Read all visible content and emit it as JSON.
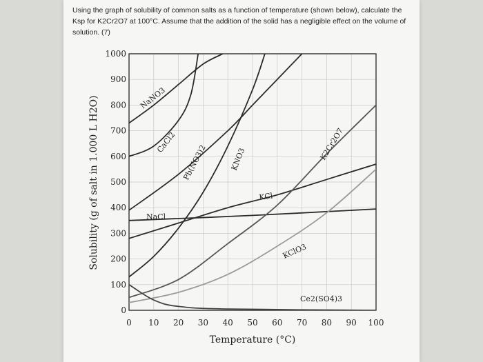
{
  "question": {
    "text": "Using the graph of solubility of common salts as a function of temperature (shown below), calculate the Ksp for K2Cr2O7 at 100°C. Assume that the addition of the solid has a negligible effect on the volume of solution. (7)"
  },
  "chart_data": {
    "type": "line",
    "title": "",
    "xlabel": "Temperature (°C)",
    "ylabel": "Solubility (g of salt in 1.000 L H2O)",
    "xlim": [
      0,
      100
    ],
    "ylim": [
      0,
      1000
    ],
    "x_ticks": [
      "0",
      "10",
      "20",
      "30",
      "40",
      "50",
      "60",
      "70",
      "80",
      "90",
      "100"
    ],
    "y_ticks": [
      "0",
      "100",
      "200",
      "300",
      "400",
      "500",
      "600",
      "700",
      "800",
      "900",
      "1000"
    ],
    "grid": true,
    "legend": "none (curves labeled directly)",
    "series": [
      {
        "name": "NaNO3",
        "points": [
          [
            0,
            730
          ],
          [
            10,
            800
          ],
          [
            20,
            880
          ],
          [
            30,
            960
          ],
          [
            38,
            1000
          ]
        ]
      },
      {
        "name": "CaCl2",
        "points": [
          [
            0,
            600
          ],
          [
            10,
            640
          ],
          [
            20,
            740
          ],
          [
            25,
            840
          ],
          [
            28,
            1000
          ]
        ]
      },
      {
        "name": "Pb(NO3)2",
        "points": [
          [
            0,
            390
          ],
          [
            20,
            530
          ],
          [
            40,
            700
          ],
          [
            50,
            800
          ],
          [
            60,
            900
          ],
          [
            70,
            1000
          ]
        ]
      },
      {
        "name": "KNO3",
        "points": [
          [
            0,
            130
          ],
          [
            10,
            210
          ],
          [
            20,
            320
          ],
          [
            30,
            460
          ],
          [
            40,
            640
          ],
          [
            50,
            860
          ],
          [
            55,
            1000
          ]
        ]
      },
      {
        "name": "KCl",
        "points": [
          [
            0,
            280
          ],
          [
            20,
            340
          ],
          [
            40,
            400
          ],
          [
            60,
            450
          ],
          [
            80,
            510
          ],
          [
            100,
            570
          ]
        ]
      },
      {
        "name": "NaCl",
        "points": [
          [
            0,
            350
          ],
          [
            50,
            370
          ],
          [
            100,
            395
          ]
        ]
      },
      {
        "name": "K2Cr2O7",
        "points": [
          [
            0,
            50
          ],
          [
            20,
            120
          ],
          [
            40,
            260
          ],
          [
            60,
            410
          ],
          [
            80,
            610
          ],
          [
            100,
            800
          ]
        ]
      },
      {
        "name": "KClO3",
        "points": [
          [
            0,
            30
          ],
          [
            20,
            70
          ],
          [
            40,
            140
          ],
          [
            60,
            250
          ],
          [
            80,
            380
          ],
          [
            100,
            550
          ]
        ]
      },
      {
        "name": "Ce2(SO4)3",
        "points": [
          [
            0,
            100
          ],
          [
            10,
            40
          ],
          [
            20,
            15
          ],
          [
            40,
            5
          ],
          [
            100,
            0
          ]
        ]
      }
    ],
    "series_colors": {
      "NaNO3": "#2b2b2b",
      "CaCl2": "#2b2b2b",
      "Pb(NO3)2": "#2b2b2b",
      "KNO3": "#2b2b2b",
      "KCl": "#2b2b2b",
      "NaCl": "#2b2b2b",
      "K2Cr2O7": "#555555",
      "KClO3": "#9a9a9a",
      "Ce2(SO4)3": "#444444"
    },
    "labels": [
      "NaNO3",
      "CaCl2",
      "Pb(NO3)2",
      "KNO3",
      "KCl",
      "NaCl",
      "K2Cr2O7",
      "KClO3",
      "Ce2(SO4)3"
    ]
  }
}
